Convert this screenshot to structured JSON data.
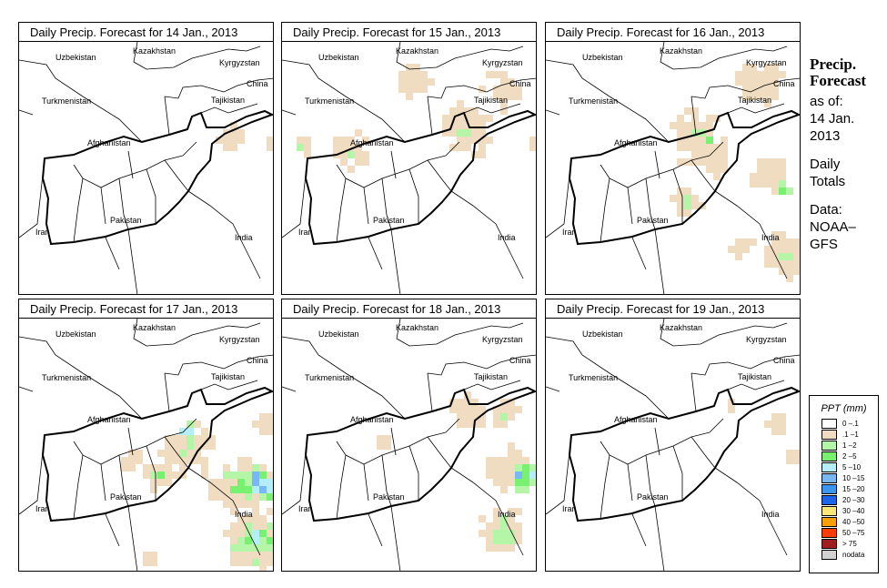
{
  "panels": [
    {
      "title": "Daily Precip. Forecast for  14 Jan., 2013"
    },
    {
      "title": "Daily Precip. Forecast for  15 Jan., 2013"
    },
    {
      "title": "Daily Precip. Forecast for  16 Jan., 2013"
    },
    {
      "title": "Daily Precip. Forecast for  17 Jan., 2013"
    },
    {
      "title": "Daily Precip. Forecast for  18 Jan., 2013"
    },
    {
      "title": "Daily Precip. Forecast for  19 Jan., 2013"
    }
  ],
  "countries": {
    "uzbekistan": "Uzbekistan",
    "kazakhstan": "Kazakhstan",
    "kyrgyzstan": "Kyrgyzstan",
    "china": "China",
    "tajikistan": "Tajikistan",
    "turkmenistan": "Turkmenistan",
    "afghanistan": "Afghanistan",
    "pakistan": "Pakistan",
    "iran": "Iran",
    "india": "India"
  },
  "side": {
    "title1": "Precip.",
    "title2": "Forecast",
    "asof": "as of:",
    "date1": "14 Jan.",
    "date2": "2013",
    "daily1": "Daily",
    "daily2": "Totals",
    "data1": "Data:",
    "data2": "NOAA–",
    "data3": "GFS"
  },
  "legend": {
    "title": "PPT (mm)",
    "items": [
      {
        "label": "0 –.1",
        "color": "#ffffff"
      },
      {
        "label": ".1 –1",
        "color": "#f0dcc0"
      },
      {
        "label": "1 –2",
        "color": "#b4f5a8"
      },
      {
        "label": "2 –5",
        "color": "#78f070"
      },
      {
        "label": "5 –10",
        "color": "#b4eef8"
      },
      {
        "label": "10 –15",
        "color": "#78b8f8"
      },
      {
        "label": "15 –20",
        "color": "#3c96f0"
      },
      {
        "label": "20 –30",
        "color": "#1e64e6"
      },
      {
        "label": "30 –40",
        "color": "#ffe678"
      },
      {
        "label": "40 –50",
        "color": "#ffa000"
      },
      {
        "label": "50 –75",
        "color": "#ff3c00"
      },
      {
        "label": "> 75",
        "color": "#a01e1e"
      },
      {
        "label": "nodata",
        "color": "#d2d2d2"
      }
    ]
  }
}
